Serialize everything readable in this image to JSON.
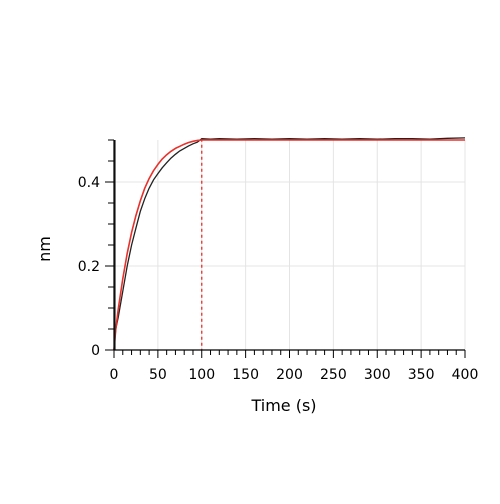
{
  "chart_data": {
    "type": "line",
    "xlabel": "Time (s)",
    "ylabel": "nm",
    "xlim": [
      0,
      400
    ],
    "ylim": [
      0,
      0.5
    ],
    "x_ticks": [
      0,
      50,
      100,
      150,
      200,
      250,
      300,
      350,
      400
    ],
    "x_tick_labels": [
      "0",
      "50",
      "100",
      "150",
      "200",
      "250",
      "300",
      "350",
      "400"
    ],
    "y_ticks": [
      0,
      0.2,
      0.4
    ],
    "y_tick_labels": [
      "0",
      "0.2",
      "0.4"
    ],
    "grid": true,
    "dashed_vline": {
      "x": 100,
      "color": "#e8312b"
    },
    "series": [
      {
        "role": "measured",
        "color": "#222222",
        "x": [
          0,
          1,
          2,
          5,
          10,
          15,
          20,
          25,
          30,
          35,
          40,
          45,
          50,
          55,
          60,
          65,
          70,
          75,
          80,
          85,
          90,
          95,
          100,
          110,
          120,
          140,
          160,
          180,
          200,
          220,
          240,
          260,
          280,
          300,
          320,
          340,
          360,
          380,
          400
        ],
        "y": [
          0,
          0.03,
          0.05,
          0.08,
          0.14,
          0.2,
          0.25,
          0.29,
          0.33,
          0.36,
          0.385,
          0.405,
          0.42,
          0.434,
          0.446,
          0.457,
          0.466,
          0.474,
          0.48,
          0.486,
          0.491,
          0.495,
          0.503,
          0.502,
          0.503,
          0.502,
          0.503,
          0.502,
          0.503,
          0.502,
          0.503,
          0.502,
          0.503,
          0.502,
          0.503,
          0.503,
          0.502,
          0.504,
          0.505
        ]
      },
      {
        "role": "fit",
        "color": "#e8312b",
        "x": [
          0,
          2,
          5,
          10,
          15,
          20,
          25,
          30,
          35,
          40,
          45,
          50,
          55,
          60,
          65,
          70,
          75,
          80,
          85,
          90,
          95,
          100,
          120,
          160,
          200,
          240,
          280,
          320,
          360,
          400
        ],
        "y": [
          0,
          0.05,
          0.1,
          0.17,
          0.23,
          0.28,
          0.32,
          0.355,
          0.385,
          0.408,
          0.427,
          0.442,
          0.455,
          0.465,
          0.473,
          0.48,
          0.485,
          0.49,
          0.494,
          0.497,
          0.499,
          0.5,
          0.5,
          0.5,
          0.5,
          0.5,
          0.5,
          0.5,
          0.5,
          0.5
        ]
      }
    ]
  }
}
